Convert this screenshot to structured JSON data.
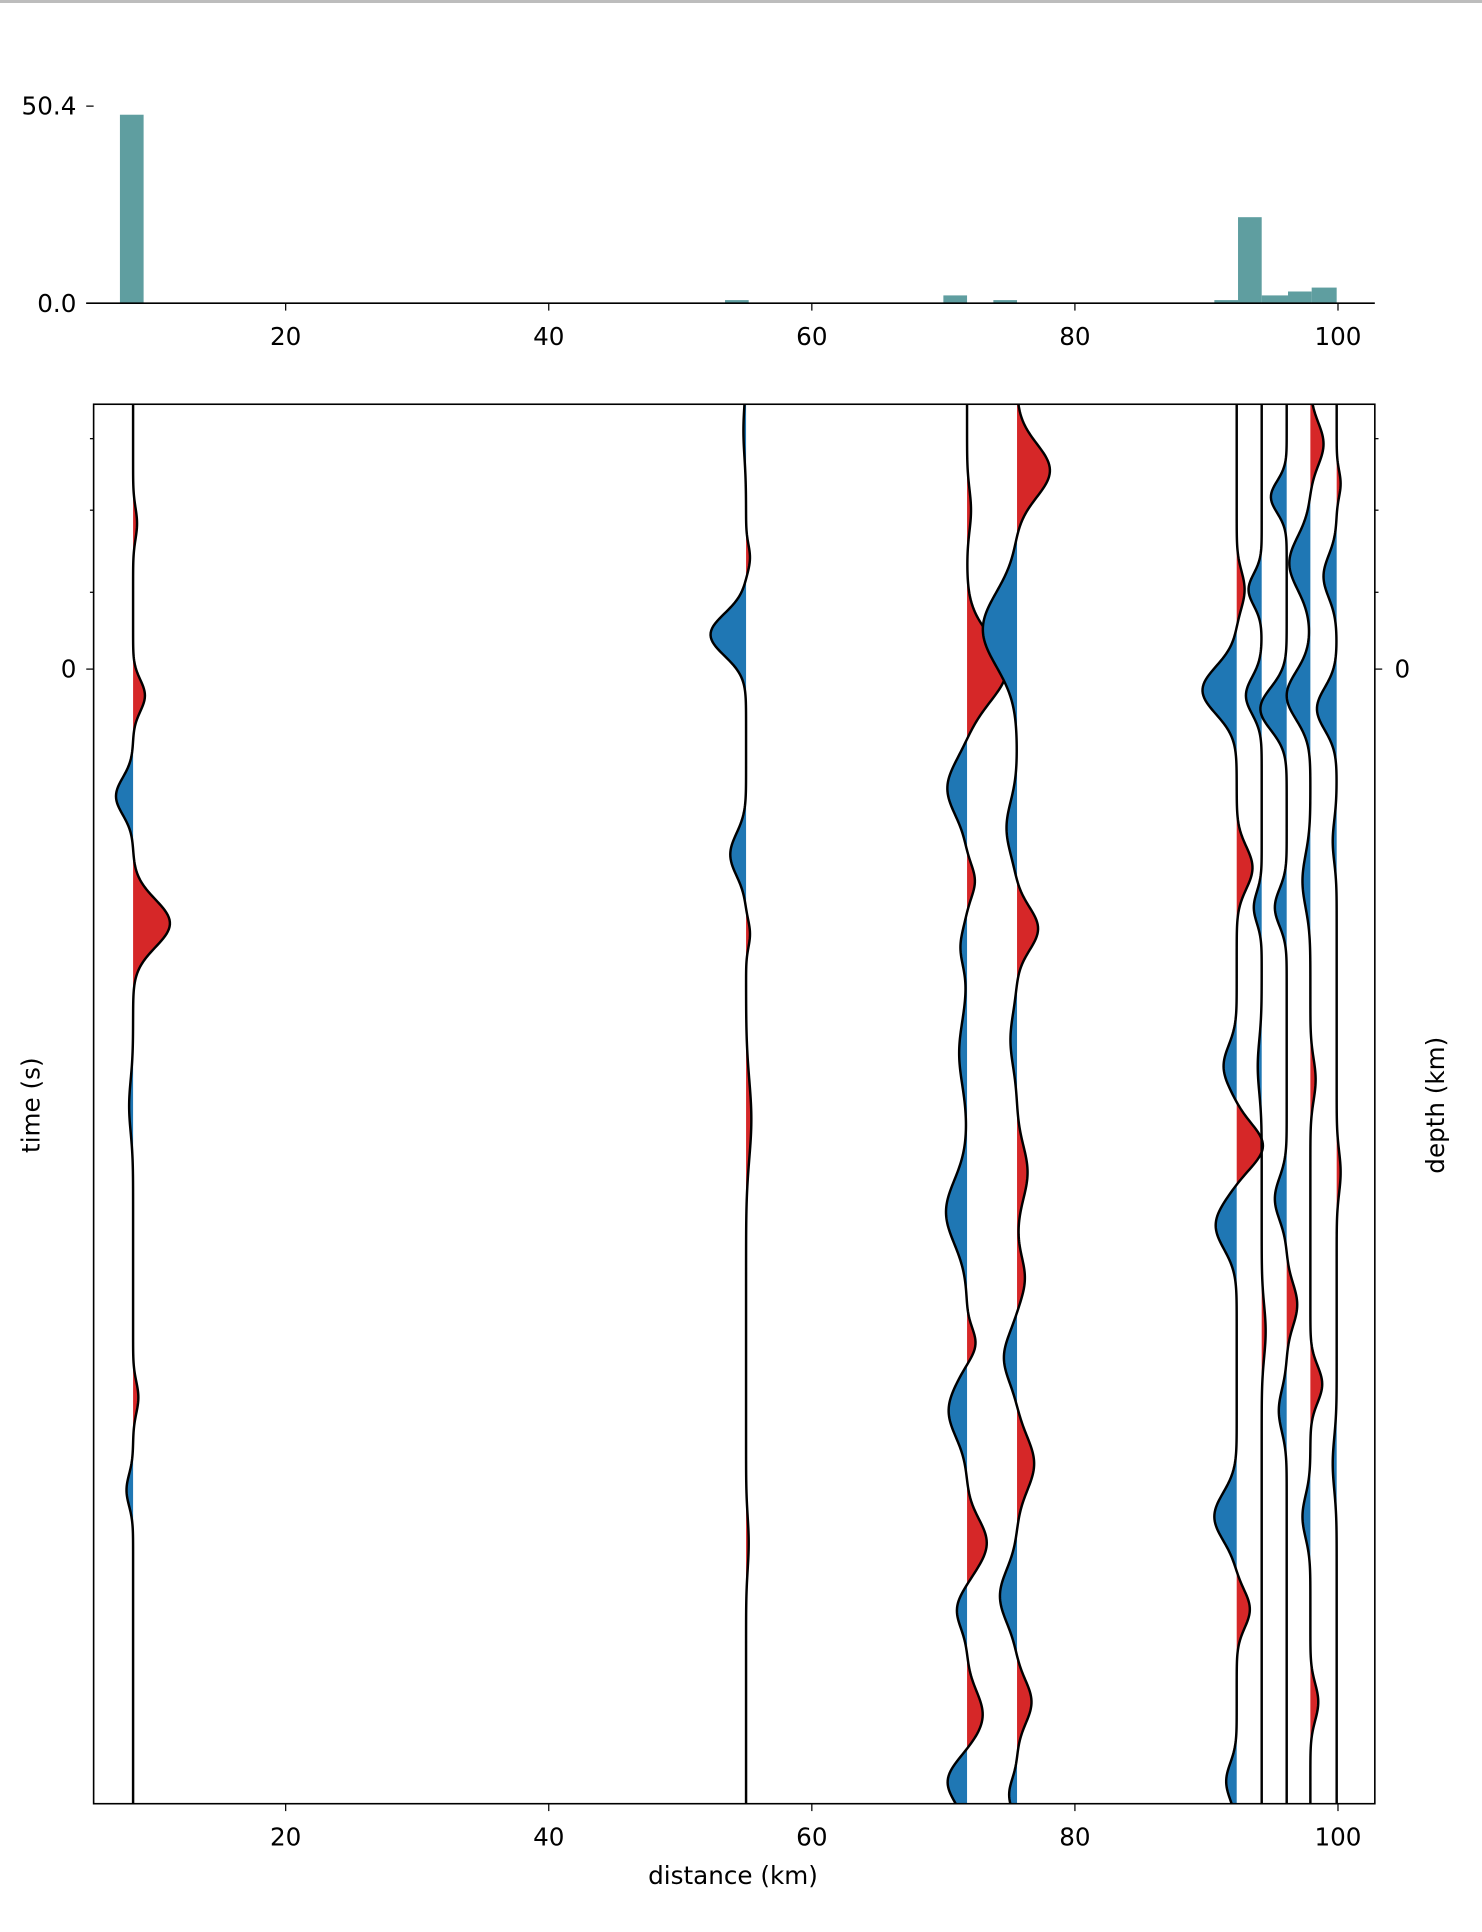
{
  "chart_data": [
    {
      "type": "bar",
      "title": "",
      "ylim": [
        0,
        50.4
      ],
      "xlim": [
        5.4,
        102.8
      ],
      "yticks": [
        "0.0",
        "50.4"
      ],
      "xticks": [
        "20",
        "40",
        "60",
        "80",
        "100"
      ],
      "bar_color": "#5f9ea0",
      "bins": [
        {
          "x0": 7.4,
          "x1": 9.2,
          "value": 48.2
        },
        {
          "x0": 53.4,
          "x1": 55.2,
          "value": 0.8
        },
        {
          "x0": 70.0,
          "x1": 71.8,
          "value": 2.0
        },
        {
          "x0": 73.8,
          "x1": 75.6,
          "value": 0.8
        },
        {
          "x0": 90.6,
          "x1": 92.4,
          "value": 0.8
        },
        {
          "x0": 92.4,
          "x1": 94.2,
          "value": 22.0
        },
        {
          "x0": 94.2,
          "x1": 96.2,
          "value": 2.0
        },
        {
          "x0": 96.2,
          "x1": 98.0,
          "value": 3.0
        },
        {
          "x0": 98.0,
          "x1": 99.9,
          "value": 4.0
        }
      ]
    },
    {
      "type": "line",
      "subtype": "wiggle",
      "xlabel": "distance (km)",
      "ylabel": "time (s)",
      "ylabel_right": "depth (km)",
      "xlim": [
        5.4,
        102.8
      ],
      "ylim": [
        -1.0,
        4.284
      ],
      "xticks": [
        "20",
        "40",
        "60",
        "80",
        "100"
      ],
      "yticks_left": [
        "0"
      ],
      "yticks_right": [
        "0"
      ],
      "positive_color": "#d62728",
      "negative_color": "#1f77b4",
      "traces": [
        {
          "offset": 8.4,
          "wavelets": [
            [
              0.1,
              0.9,
              0.06
            ],
            [
              0.48,
              -1.3,
              0.07
            ],
            [
              0.96,
              2.8,
              0.09
            ],
            [
              1.65,
              -0.3,
              0.1
            ],
            [
              2.75,
              0.4,
              0.06
            ],
            [
              3.1,
              -0.5,
              0.06
            ],
            [
              -0.55,
              0.3,
              0.06
            ]
          ]
        },
        {
          "offset": 55.0,
          "wavelets": [
            [
              -0.9,
              -0.2,
              0.1
            ],
            [
              -0.42,
              0.3,
              0.05
            ],
            [
              -0.13,
              -2.7,
              0.08
            ],
            [
              0.7,
              -1.2,
              0.08
            ],
            [
              1.0,
              0.3,
              0.05
            ],
            [
              1.7,
              0.4,
              0.15
            ],
            [
              3.3,
              0.2,
              0.1
            ]
          ]
        },
        {
          "offset": 71.8,
          "wavelets": [
            [
              -0.6,
              0.3,
              0.08
            ],
            [
              0.0,
              3.0,
              0.12
            ],
            [
              0.45,
              -1.5,
              0.1
            ],
            [
              0.8,
              0.6,
              0.06
            ],
            [
              1.05,
              -0.5,
              0.07
            ],
            [
              1.45,
              -0.6,
              0.12
            ],
            [
              2.05,
              -1.6,
              0.12
            ],
            [
              2.55,
              0.7,
              0.06
            ],
            [
              2.8,
              -1.4,
              0.1
            ],
            [
              3.3,
              1.5,
              0.09
            ],
            [
              3.55,
              -0.8,
              0.07
            ],
            [
              3.95,
              1.2,
              0.09
            ],
            [
              4.2,
              -1.5,
              0.08
            ]
          ]
        },
        {
          "offset": 75.6,
          "wavelets": [
            [
              -0.75,
              2.5,
              0.1
            ],
            [
              -0.15,
              -2.6,
              0.14
            ],
            [
              0.6,
              -0.8,
              0.1
            ],
            [
              0.98,
              1.6,
              0.08
            ],
            [
              1.4,
              -0.5,
              0.1
            ],
            [
              1.9,
              0.8,
              0.1
            ],
            [
              2.3,
              0.6,
              0.08
            ],
            [
              2.6,
              -1.0,
              0.09
            ],
            [
              3.0,
              1.3,
              0.1
            ],
            [
              3.5,
              -1.3,
              0.1
            ],
            [
              3.9,
              1.1,
              0.08
            ],
            [
              4.25,
              -0.6,
              0.06
            ]
          ]
        },
        {
          "offset": 92.3,
          "wavelets": [
            [
              -0.3,
              0.6,
              0.07
            ],
            [
              0.08,
              -2.6,
              0.09
            ],
            [
              0.75,
              1.2,
              0.08
            ],
            [
              1.5,
              -1.0,
              0.08
            ],
            [
              1.8,
              2.0,
              0.08
            ],
            [
              2.1,
              -1.6,
              0.09
            ],
            [
              3.2,
              -1.7,
              0.09
            ],
            [
              3.55,
              1.0,
              0.07
            ],
            [
              4.2,
              -0.8,
              0.07
            ]
          ]
        },
        {
          "offset": 94.2,
          "wavelets": [
            [
              -0.3,
              -1.0,
              0.06
            ],
            [
              0.1,
              -1.2,
              0.07
            ],
            [
              0.9,
              -0.6,
              0.06
            ],
            [
              1.5,
              -0.3,
              0.1
            ],
            [
              2.5,
              0.3,
              0.1
            ]
          ]
        },
        {
          "offset": 96.1,
          "wavelets": [
            [
              -0.65,
              -1.2,
              0.06
            ],
            [
              0.15,
              -2.0,
              0.08
            ],
            [
              0.9,
              -0.9,
              0.07
            ],
            [
              2.0,
              -0.9,
              0.08
            ],
            [
              2.4,
              0.8,
              0.08
            ],
            [
              2.8,
              -0.6,
              0.08
            ]
          ]
        },
        {
          "offset": 97.9,
          "wavelets": [
            [
              -0.85,
              1.0,
              0.08
            ],
            [
              -0.4,
              -1.6,
              0.1
            ],
            [
              0.1,
              -1.8,
              0.09
            ],
            [
              0.8,
              -0.6,
              0.1
            ],
            [
              1.55,
              0.4,
              0.08
            ],
            [
              2.7,
              0.9,
              0.07
            ],
            [
              3.2,
              -0.6,
              0.08
            ],
            [
              3.9,
              0.6,
              0.07
            ]
          ]
        },
        {
          "offset": 99.9,
          "wavelets": [
            [
              -0.7,
              0.3,
              0.05
            ],
            [
              -0.35,
              -1.0,
              0.08
            ],
            [
              0.15,
              -1.5,
              0.08
            ],
            [
              0.65,
              -0.3,
              0.08
            ],
            [
              1.9,
              0.3,
              0.08
            ],
            [
              3.0,
              -0.3,
              0.1
            ]
          ]
        }
      ]
    }
  ]
}
